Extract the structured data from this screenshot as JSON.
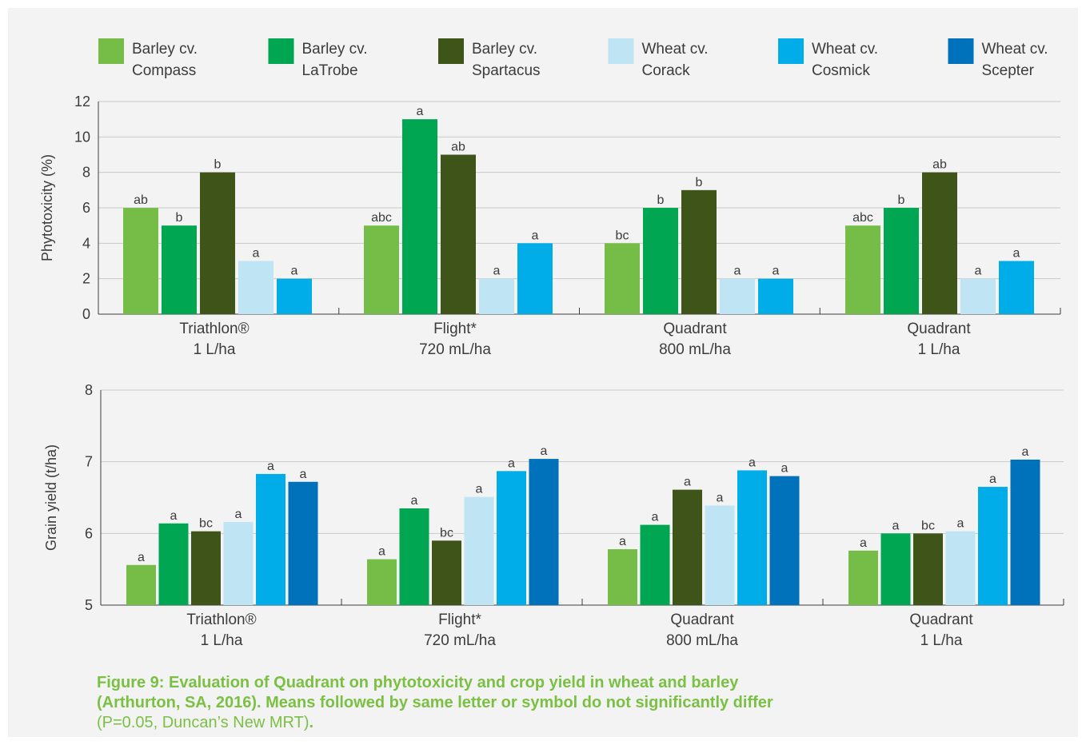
{
  "colors": {
    "background": "#f3f3f3",
    "gridline": "#c9c9c9",
    "axis": "#3c3c3c",
    "caption": "#7ac143"
  },
  "legend": [
    {
      "line1": "Barley cv.",
      "line2": "Compass",
      "color": "#76bd47"
    },
    {
      "line1": "Barley cv.",
      "line2": "LaTrobe",
      "color": "#00a652"
    },
    {
      "line1": "Barley cv.",
      "line2": "Spartacus",
      "color": "#3f5418"
    },
    {
      "line1": "Wheat cv.",
      "line2": "Corack",
      "color": "#bfe5f5"
    },
    {
      "line1": "Wheat cv.",
      "line2": "Cosmick",
      "color": "#00ade9"
    },
    {
      "line1": "Wheat cv.",
      "line2": "Scepter",
      "color": "#0071bb"
    }
  ],
  "chart_data": [
    {
      "type": "bar",
      "title": "",
      "ylabel": "Phytotoxicity (%)",
      "xlabel": "",
      "ylim": [
        0,
        12
      ],
      "yticks": [
        "0",
        "2",
        "4",
        "6",
        "8",
        "10",
        "12"
      ],
      "grid": true,
      "legend": "top",
      "categories": [
        {
          "line1": "Triathlon®",
          "line2": "1 L/ha"
        },
        {
          "line1": "Flight*",
          "line2": "720 mL/ha"
        },
        {
          "line1": "Quadrant",
          "line2": "800 mL/ha"
        },
        {
          "line1": "Quadrant",
          "line2": "1 L/ha"
        }
      ],
      "series": [
        {
          "name": "Barley cv. Compass",
          "values": [
            6,
            5,
            4,
            5
          ],
          "labels": [
            "ab",
            "abc",
            "bc",
            "abc"
          ]
        },
        {
          "name": "Barley cv. LaTrobe",
          "values": [
            5,
            11,
            6,
            6
          ],
          "labels": [
            "b",
            "a",
            "b",
            "b"
          ]
        },
        {
          "name": "Barley cv. Spartacus",
          "values": [
            8,
            9,
            7,
            8
          ],
          "labels": [
            "b",
            "ab",
            "b",
            "ab"
          ]
        },
        {
          "name": "Wheat cv. Corack",
          "values": [
            3,
            2,
            2,
            2
          ],
          "labels": [
            "a",
            "a",
            "a",
            "a"
          ]
        },
        {
          "name": "Wheat cv. Cosmick",
          "values": [
            2,
            4,
            2,
            3
          ],
          "labels": [
            "a",
            "a",
            "a",
            "a"
          ]
        }
      ]
    },
    {
      "type": "bar",
      "title": "",
      "ylabel": "Grain yield (t/ha)",
      "xlabel": "",
      "ylim": [
        5,
        8
      ],
      "yticks": [
        "5",
        "6",
        "7",
        "8"
      ],
      "grid": true,
      "legend": "top",
      "categories": [
        {
          "line1": "Triathlon®",
          "line2": "1 L/ha"
        },
        {
          "line1": "Flight*",
          "line2": "720 mL/ha"
        },
        {
          "line1": "Quadrant",
          "line2": "800 mL/ha"
        },
        {
          "line1": "Quadrant",
          "line2": "1 L/ha"
        }
      ],
      "series": [
        {
          "name": "Barley cv. Compass",
          "values": [
            5.56,
            5.64,
            5.78,
            5.76
          ],
          "labels": [
            "a",
            "a",
            "a",
            "a"
          ]
        },
        {
          "name": "Barley cv. LaTrobe",
          "values": [
            6.14,
            6.35,
            6.12,
            6.0
          ],
          "labels": [
            "a",
            "a",
            "a",
            "a"
          ]
        },
        {
          "name": "Barley cv. Spartacus",
          "values": [
            6.03,
            5.9,
            6.61,
            6.0
          ],
          "labels": [
            "bc",
            "bc",
            "a",
            "bc"
          ]
        },
        {
          "name": "Wheat cv. Corack",
          "values": [
            6.16,
            6.51,
            6.39,
            6.03
          ],
          "labels": [
            "a",
            "a",
            "a",
            "a"
          ]
        },
        {
          "name": "Wheat cv. Cosmick",
          "values": [
            6.83,
            6.87,
            6.88,
            6.65
          ],
          "labels": [
            "a",
            "a",
            "a",
            "a"
          ]
        },
        {
          "name": "Wheat cv. Scepter",
          "values": [
            6.72,
            7.04,
            6.8,
            7.03
          ],
          "labels": [
            "a",
            "a",
            "a",
            "a"
          ]
        }
      ]
    }
  ],
  "caption": {
    "bold_line1": "Figure 9: Evaluation of Quadrant on phytotoxicity and crop yield in wheat and barley",
    "bold_line2": "(Arthurton, SA, 2016). Means followed by same letter or symbol do not significantly differ",
    "plain": "(P=0.05, Duncan’s New MRT)",
    "end": "."
  }
}
